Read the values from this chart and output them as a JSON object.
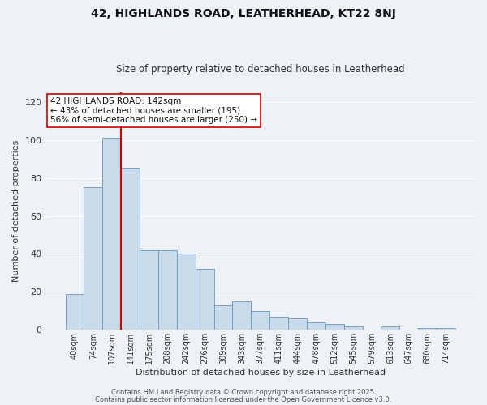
{
  "title": "42, HIGHLANDS ROAD, LEATHERHEAD, KT22 8NJ",
  "subtitle": "Size of property relative to detached houses in Leatherhead",
  "xlabel": "Distribution of detached houses by size in Leatherhead",
  "ylabel": "Number of detached properties",
  "bar_values": [
    19,
    75,
    101,
    85,
    42,
    42,
    40,
    32,
    13,
    15,
    10,
    7,
    6,
    4,
    3,
    2,
    0,
    2,
    0,
    1,
    1
  ],
  "bar_labels": [
    "40sqm",
    "74sqm",
    "107sqm",
    "141sqm",
    "175sqm",
    "208sqm",
    "242sqm",
    "276sqm",
    "309sqm",
    "343sqm",
    "377sqm",
    "411sqm",
    "444sqm",
    "478sqm",
    "512sqm",
    "545sqm",
    "579sqm",
    "613sqm",
    "647sqm",
    "680sqm",
    "714sqm"
  ],
  "bar_color": "#c9daea",
  "bar_edgecolor": "#6699bb",
  "vline_color": "#cc0000",
  "annotation_line1": "42 HIGHLANDS ROAD: 142sqm",
  "annotation_line2": "← 43% of detached houses are smaller (195)",
  "annotation_line3": "56% of semi-detached houses are larger (250) →",
  "ylim": [
    0,
    125
  ],
  "yticks": [
    0,
    20,
    40,
    60,
    80,
    100,
    120
  ],
  "footer1": "Contains HM Land Registry data © Crown copyright and database right 2025.",
  "footer2": "Contains public sector information licensed under the Open Government Licence v3.0.",
  "background_color": "#eef2f7",
  "grid_color": "#ffffff",
  "annotation_fontsize": 7.5,
  "title_fontsize": 10,
  "subtitle_fontsize": 8.5,
  "xlabel_fontsize": 8,
  "ylabel_fontsize": 8,
  "tick_fontsize": 7,
  "ytick_fontsize": 8,
  "footer_fontsize": 6
}
